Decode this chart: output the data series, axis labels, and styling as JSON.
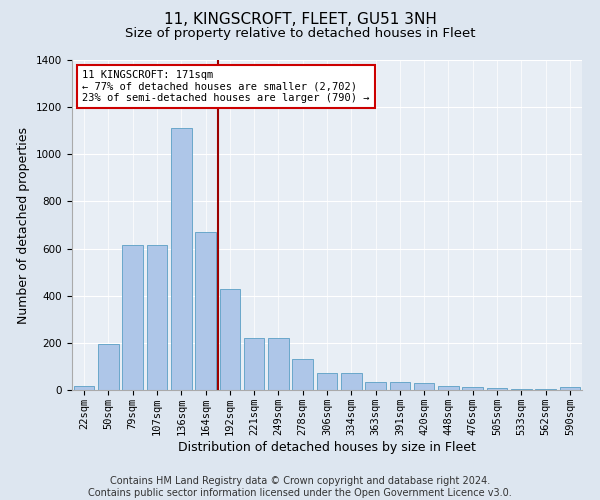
{
  "title": "11, KINGSCROFT, FLEET, GU51 3NH",
  "subtitle": "Size of property relative to detached houses in Fleet",
  "xlabel": "Distribution of detached houses by size in Fleet",
  "ylabel": "Number of detached properties",
  "footer_line1": "Contains HM Land Registry data © Crown copyright and database right 2024.",
  "footer_line2": "Contains public sector information licensed under the Open Government Licence v3.0.",
  "categories": [
    "22sqm",
    "50sqm",
    "79sqm",
    "107sqm",
    "136sqm",
    "164sqm",
    "192sqm",
    "221sqm",
    "249sqm",
    "278sqm",
    "306sqm",
    "334sqm",
    "363sqm",
    "391sqm",
    "420sqm",
    "448sqm",
    "476sqm",
    "505sqm",
    "533sqm",
    "562sqm",
    "590sqm"
  ],
  "values": [
    18,
    195,
    615,
    615,
    1110,
    670,
    430,
    220,
    220,
    130,
    73,
    73,
    33,
    33,
    28,
    18,
    12,
    8,
    5,
    5,
    12
  ],
  "bar_color": "#aec6e8",
  "bar_edge_color": "#5a9fc5",
  "vline_color": "#9b0000",
  "annotation_text": "11 KINGSCROFT: 171sqm\n← 77% of detached houses are smaller (2,702)\n23% of semi-detached houses are larger (790) →",
  "annotation_box_color": "#ffffff",
  "annotation_box_edge": "#cc0000",
  "ylim": [
    0,
    1400
  ],
  "yticks": [
    0,
    200,
    400,
    600,
    800,
    1000,
    1200,
    1400
  ],
  "bg_color": "#dde6f0",
  "plot_bg_color": "#e8eef5",
  "title_fontsize": 11,
  "subtitle_fontsize": 9.5,
  "axis_label_fontsize": 9,
  "tick_fontsize": 7.5,
  "footer_fontsize": 7
}
